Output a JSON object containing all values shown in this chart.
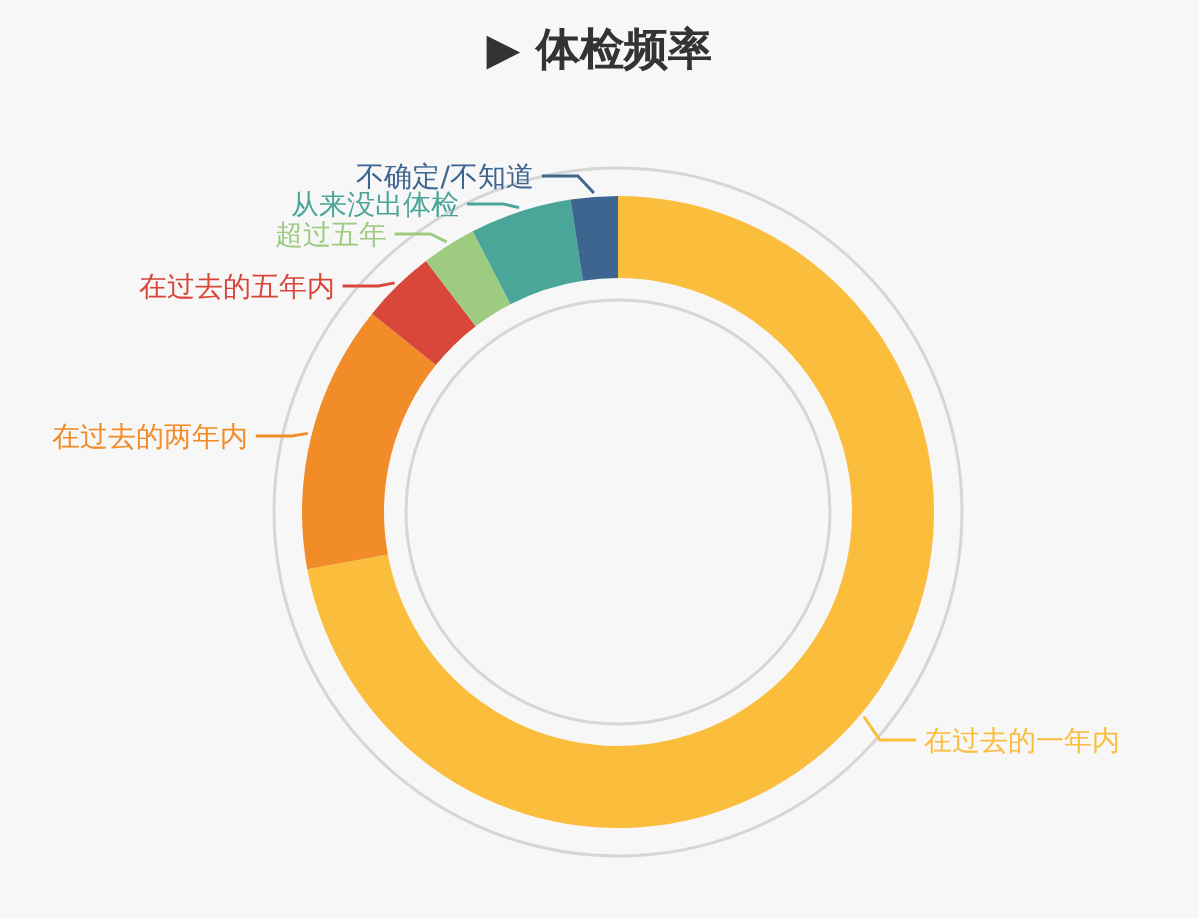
{
  "chart_data": {
    "type": "donut",
    "title": "▶ 体检频率",
    "categories": [
      "在过去的一年内",
      "在过去的两年内",
      "在过去的五年内",
      "超过五年",
      "从来没出体检",
      "不确定/不知道"
    ],
    "values": [
      72.1,
      13.7,
      3.8,
      2.8,
      5.2,
      2.4
    ],
    "colors": [
      "#fbbd3c",
      "#f28c28",
      "#d9473b",
      "#9dcb7f",
      "#4aa698",
      "#3e6590"
    ]
  }
}
